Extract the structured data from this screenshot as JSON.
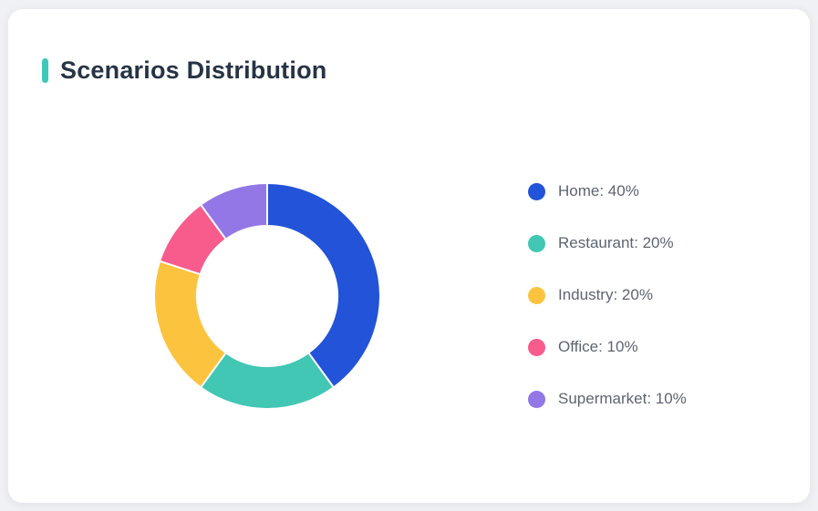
{
  "header": {
    "title": "Scenarios Distribution",
    "accent_color": "#3ec8bc",
    "title_color": "#263445"
  },
  "colors": {
    "page_background": "#eff1f4",
    "card_background": "#ffffff",
    "legend_text": "#5d6472"
  },
  "chart_data": {
    "type": "pie",
    "variant": "donut",
    "title": "Scenarios Distribution",
    "categories": [
      "Home",
      "Restaurant",
      "Industry",
      "Office",
      "Supermarket"
    ],
    "values": [
      40,
      20,
      20,
      10,
      10
    ],
    "unit": "%",
    "series": [
      {
        "label": "Home",
        "value": 40,
        "color": "#2253d8",
        "display": "Home: 40%"
      },
      {
        "label": "Restaurant",
        "value": 20,
        "color": "#41c7b4",
        "display": "Restaurant: 20%"
      },
      {
        "label": "Industry",
        "value": 20,
        "color": "#fcc43e",
        "display": "Industry: 20%"
      },
      {
        "label": "Office",
        "value": 10,
        "color": "#f75c8d",
        "display": "Office: 10%"
      },
      {
        "label": "Supermarket",
        "value": 10,
        "color": "#9377e6",
        "display": "Supermarket: 10%"
      }
    ],
    "start_angle_deg": 0,
    "direction": "clockwise",
    "outer_radius": 124,
    "inner_radius": 77,
    "slice_border_color": "#ffffff",
    "slice_border_width": 2,
    "legend_position": "right"
  }
}
